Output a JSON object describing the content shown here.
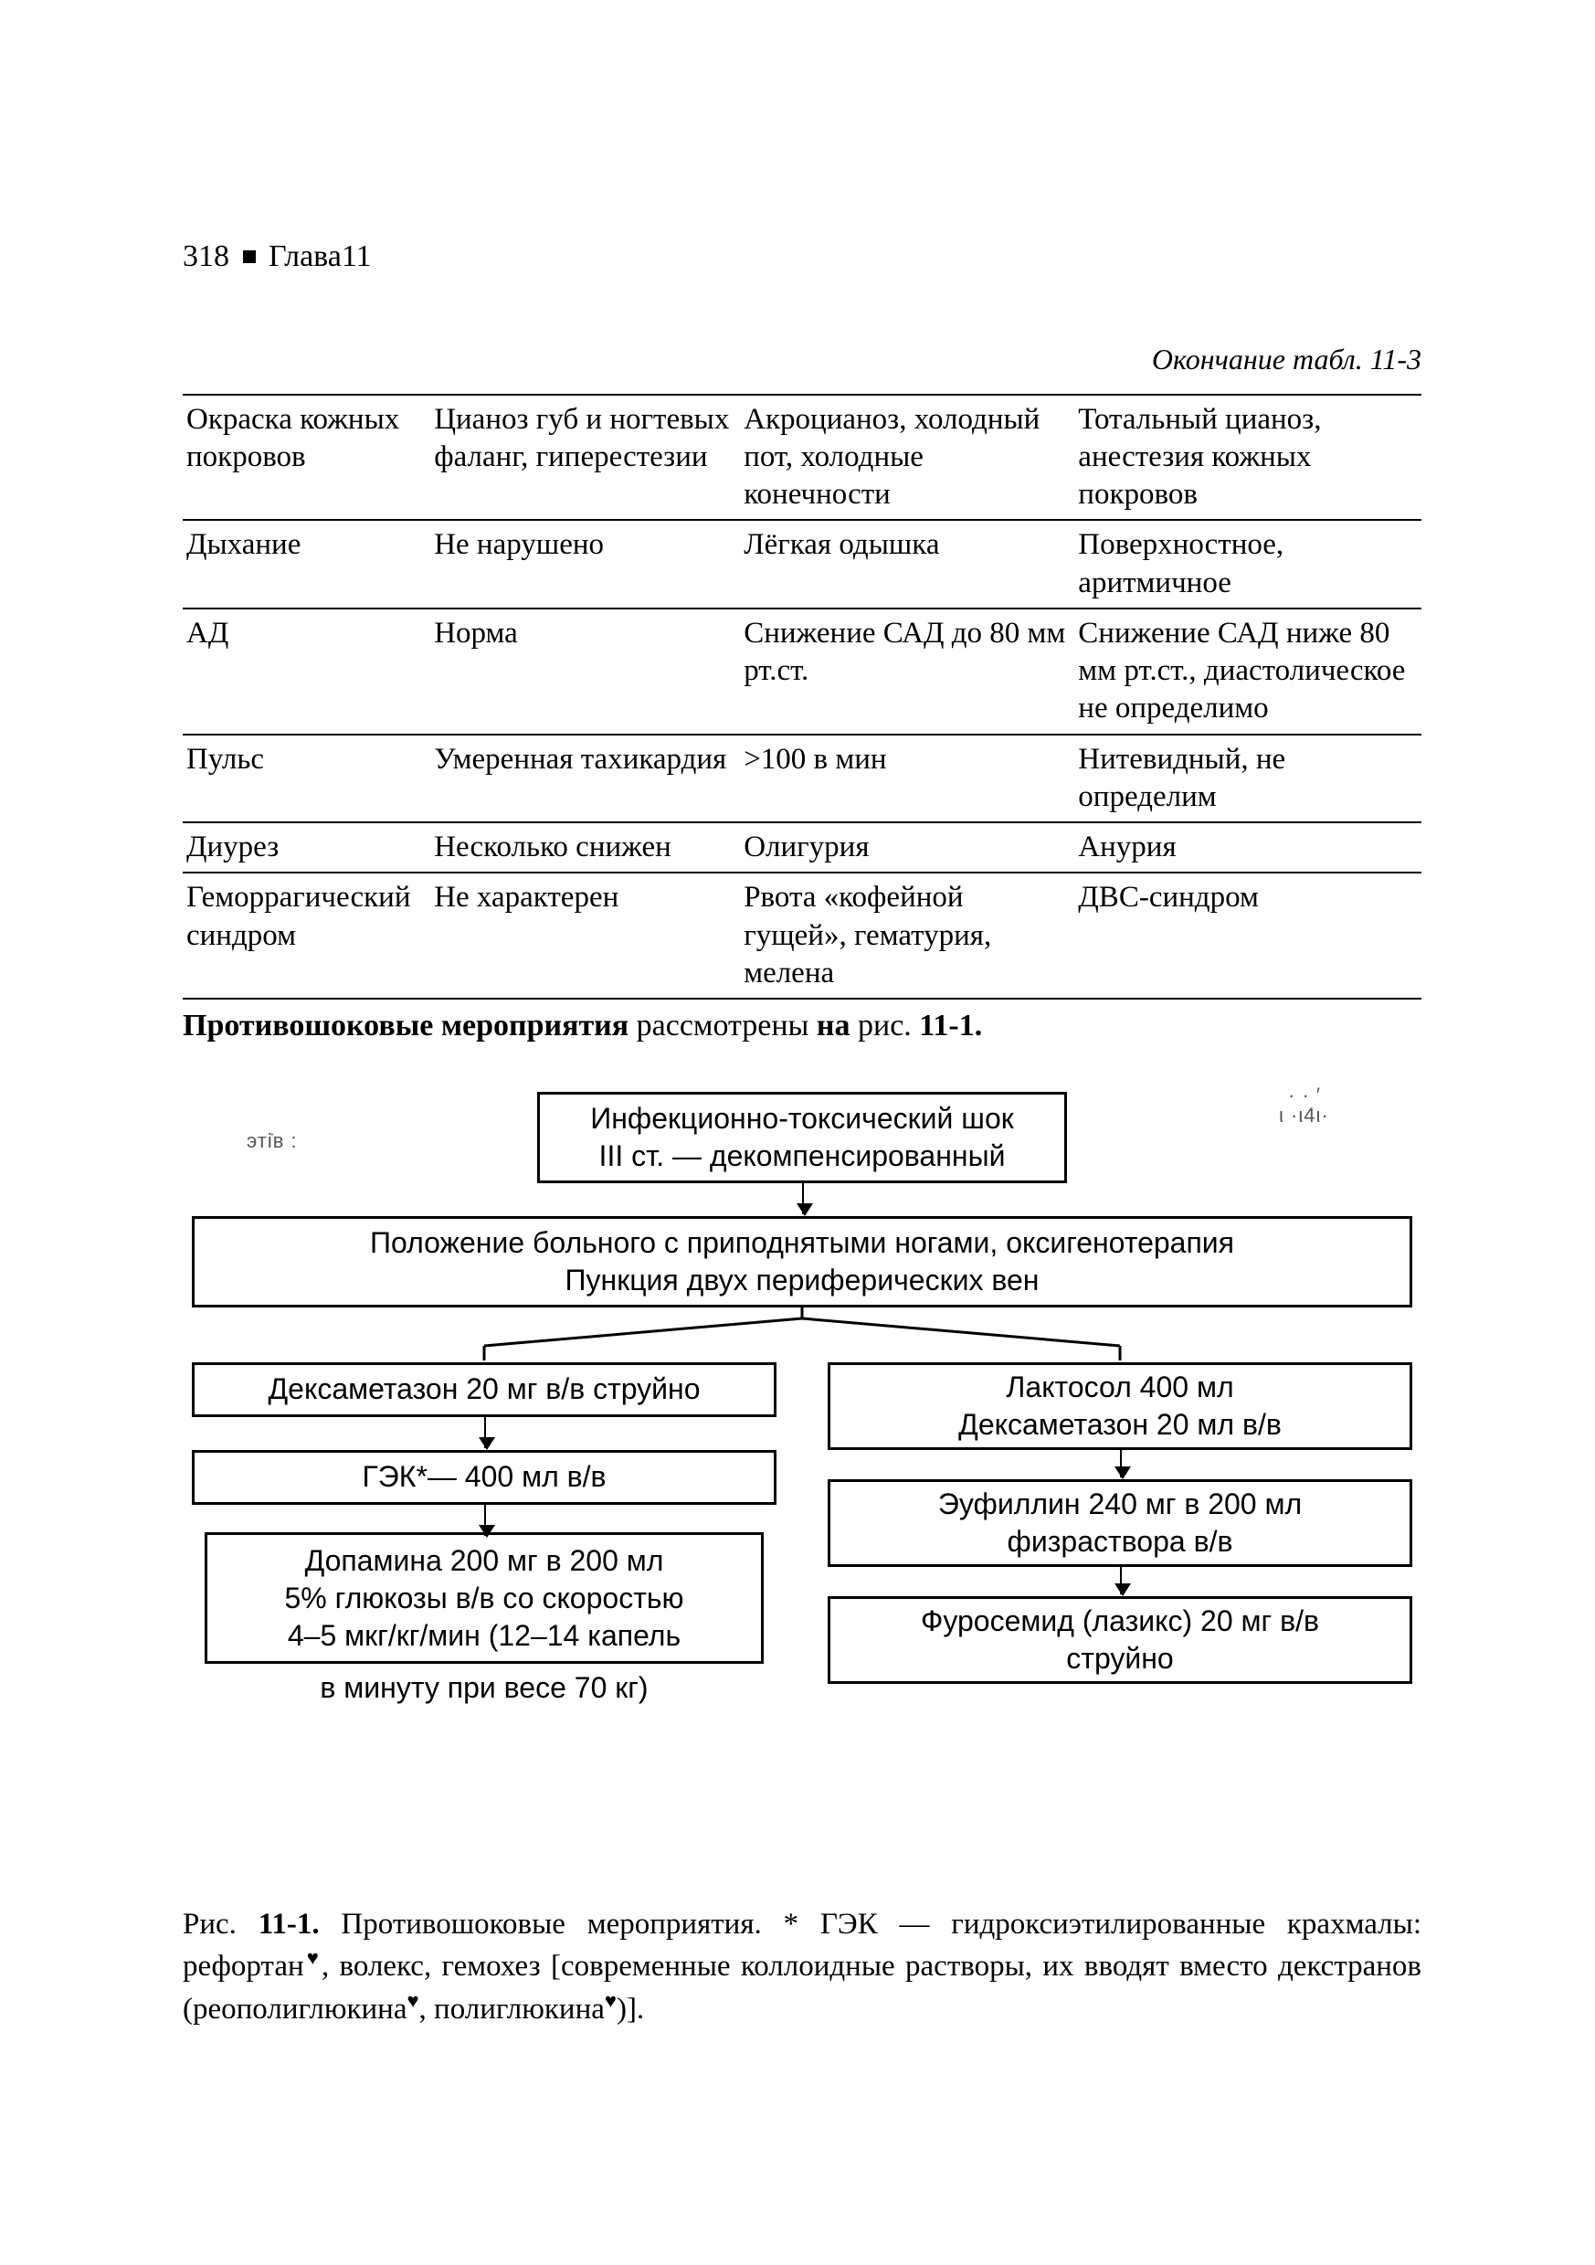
{
  "header": {
    "page_number": "318",
    "chapter_label": "Глава11"
  },
  "table_continuation": "Окончание табл. 11-3",
  "table": {
    "rows": [
      [
        "Окраска кожных покровов",
        "Цианоз губ и ногтевых фаланг, гиперестезии",
        "Акроцианоз, холодный пот, холодные конечности",
        "Тотальный цианоз, анестезия кожных покровов"
      ],
      [
        "Дыхание",
        "Не нарушено",
        "Лёгкая одышка",
        "Поверхностное, аритмичное"
      ],
      [
        "АД",
        "Норма",
        "Снижение САД до 80 мм рт.ст.",
        "Снижение САД ниже 80 мм рт.ст., диастолическое не определимо"
      ],
      [
        "Пульс",
        "Умеренная тахикардия",
        ">100 в мин",
        "Нитевидный, не определим"
      ],
      [
        "Диурез",
        "Несколько снижен",
        "Олигурия",
        "Анурия"
      ],
      [
        "Геморрагический синдром",
        "Не характерен",
        "Рвота «кофейной гущей», гематурия, мелена",
        "ДВС-синдром"
      ]
    ]
  },
  "after_table": {
    "bold1": "Противошоковые мероприятия",
    "mid": " рассмотрены ",
    "bold2": "на",
    "mid2": " рис. ",
    "bold3": "11-1."
  },
  "flow": {
    "n1_l1": "Инфекционно-токсический шок",
    "n1_l2": "III ст. — декомпенсированный",
    "n2_l1": "Положение больного с приподнятыми ногами, оксигенотерапия",
    "n2_l2": "Пункция двух периферических вен",
    "l1": "Дексаметазон 20 мг в/в струйно",
    "l2": "ГЭК*— 400 мл в/в",
    "l3_l1": "Допамина 200 мг в 200 мл",
    "l3_l2": "5% глюкозы в/в со скоростью",
    "l3_l3": "4–5 мкг/кг/мин (12–14 капель",
    "l3_l4": "в минуту при весе 70 кг)",
    "r1_l1": "Лактосол 400 мл",
    "r1_l2": "Дексаметазон 20 мл в/в",
    "r2_l1": "Эуфиллин 240 мг в 200 мл",
    "r2_l2": "физраствора в/в",
    "r3_l1": "Фуросемид (лазикс) 20 мг в/в",
    "r3_l2": "струйно"
  },
  "caption": {
    "prefix": "Рис. ",
    "fignum": "11-1.",
    "body1": " Противошоковые мероприятия. * ГЭК — гидроксиэтилированные крахмалы: рефортан",
    "body2": ", волекс, гемохез [современные коллоидные растворы, их вводят вместо декстранов (реополиглюкина",
    "body3": ", полиглюкина",
    "body4": ")]."
  }
}
